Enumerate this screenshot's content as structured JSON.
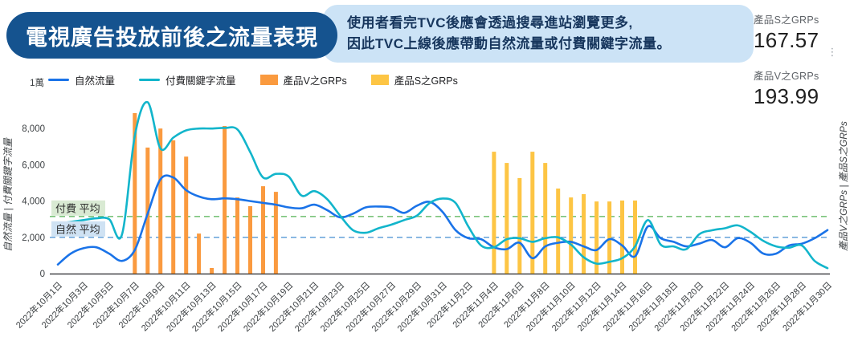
{
  "header": {
    "title": "電視廣告投放前後之流量表現",
    "annotation_line1": "使用者看完TVC後應會透過搜尋進站瀏覽更多,",
    "annotation_line2": "因此TVC上線後應帶動自然流量或付費關鍵字流量。"
  },
  "scorecards": [
    {
      "label": "產品S之GRPs",
      "value": "167.57"
    },
    {
      "label": "產品V之GRPs",
      "value": "193.99"
    }
  ],
  "kebab_glyph": "⋮",
  "colors": {
    "title_pill_bg": "#15538F",
    "banner_bg": "#CCE3F6",
    "annotation_text": "#17365D",
    "organic_line": "#1A73E8",
    "paid_line": "#12B5CB",
    "grps_v_bar": "#FA9A3F",
    "grps_s_bar": "#FDC544",
    "paid_avg_line": "#7CC47C",
    "paid_avg_label_bg": "#D9EAD3",
    "organic_avg_line": "#6FA8DC",
    "organic_avg_label_bg": "#CFE2F3",
    "axis_text": "#3C4043"
  },
  "chart_data": {
    "type": "combo line+bar, dual axis",
    "x_start_label": "2022年10月1日",
    "x_end_label": "2022年11月30日",
    "x_days_total": 61,
    "x_tick_labels": [
      "2022年10月1日",
      "2022年10月3日",
      "2022年10月5日",
      "2022年10月7日",
      "2022年10月9日",
      "2022年10月11日",
      "2022年10月13日",
      "2022年10月15日",
      "2022年10月17日",
      "2022年10月19日",
      "2022年10月21日",
      "2022年10月23日",
      "2022年10月25日",
      "2022年10月27日",
      "2022年10月29日",
      "2022年10月31日",
      "2022年11月2日",
      "2022年11月4日",
      "2022年11月6日",
      "2022年11月8日",
      "2022年11月10日",
      "2022年11月12日",
      "2022年11月14日",
      "2022年11月16日",
      "2022年11月18日",
      "2022年11月20日",
      "2022年11月22日",
      "2022年11月24日",
      "2022年11月26日",
      "2022年11月28日",
      "2022年11月30日"
    ],
    "y_left": {
      "title": "自然流量 | 付費關鍵字流量",
      "tick_values": [
        0,
        2000,
        4000,
        6000,
        8000
      ],
      "tick_labels": [
        "0",
        "2,000",
        "4,000",
        "6,000",
        "8,000"
      ],
      "top_label": "1萬",
      "max": 10000
    },
    "y_right": {
      "title": "產品V之GRPs | 產品S之GRPs"
    },
    "series": [
      {
        "name": "自然流量",
        "type": "line",
        "color": "#1A73E8",
        "daily_values": [
          500,
          1100,
          1400,
          1450,
          1100,
          700,
          1300,
          3300,
          5200,
          5300,
          4600,
          4250,
          4100,
          4150,
          4100,
          4000,
          3900,
          3800,
          3650,
          3600,
          3800,
          3500,
          3100,
          3300,
          3650,
          3700,
          3650,
          3350,
          3750,
          3950,
          3400,
          2400,
          1950,
          1900,
          1450,
          1350,
          1700,
          850,
          1500,
          1700,
          1750,
          1500,
          1300,
          1900,
          1550,
          950,
          2600,
          1950,
          1750,
          1500,
          1650,
          1850,
          1450,
          1950,
          1700,
          1100,
          1100,
          1550,
          1650,
          1950,
          2400
        ]
      },
      {
        "name": "付費關鍵字流量",
        "type": "line",
        "color": "#12B5CB",
        "daily_values": [
          2750,
          2850,
          2950,
          3050,
          3000,
          2150,
          7600,
          9450,
          6900,
          7500,
          7900,
          8000,
          8000,
          8030,
          7950,
          6700,
          5300,
          5500,
          5350,
          4300,
          4550,
          4100,
          3200,
          2400,
          2250,
          2500,
          2700,
          2950,
          3200,
          3900,
          4140,
          3900,
          2600,
          1550,
          1450,
          1900,
          1950,
          1750,
          1950,
          2000,
          1600,
          900,
          550,
          650,
          850,
          1500,
          2950,
          1600,
          1500,
          1350,
          2170,
          2390,
          2500,
          2660,
          2300,
          1800,
          1500,
          1430,
          1550,
          700,
          300
        ]
      },
      {
        "name": "產品V之GRPs",
        "type": "bar",
        "color": "#FA9A3F",
        "first_bar_date": "2022年10月7日",
        "last_bar_date": "2022年10月18日",
        "start_day_index": 6,
        "values": [
          8850,
          6950,
          8000,
          7350,
          6450,
          2210,
          310,
          8140,
          4200,
          3720,
          4820,
          4510
        ]
      },
      {
        "name": "產品S之GRPs",
        "type": "bar",
        "color": "#FDC544",
        "first_bar_date": "2022年11月4日",
        "last_bar_date": "2022年11月15日",
        "start_day_index": 34,
        "values": [
          6720,
          6100,
          5270,
          6720,
          6100,
          4690,
          4200,
          4380,
          3980,
          3980,
          4030,
          4030
        ]
      }
    ],
    "reference_lines": [
      {
        "label": "付費 平均",
        "value": 3150,
        "line_color": "#7CC47C",
        "label_bg": "#D9EAD3"
      },
      {
        "label": "自然 平均",
        "value": 2000,
        "line_color": "#6FA8DC",
        "label_bg": "#CFE2F3"
      }
    ],
    "legend_position": "top-left",
    "grid": "none (baseline only)"
  }
}
